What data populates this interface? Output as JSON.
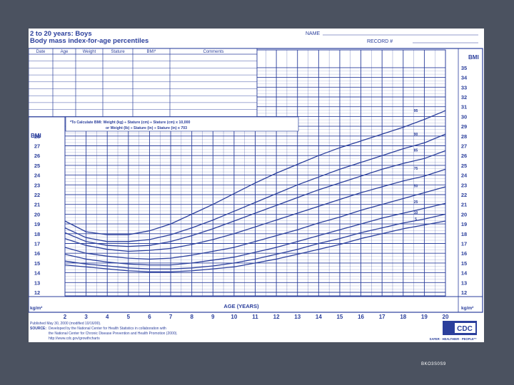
{
  "header": {
    "title_line1": "2 to 20 years: Boys",
    "title_line2": "Body mass index-for-age percentiles",
    "name_label": "NAME",
    "record_label": "RECORD #"
  },
  "table": {
    "columns": [
      "Date",
      "Age",
      "Weight",
      "Stature",
      "BMI*",
      "Comments"
    ]
  },
  "formula": {
    "line1": "*To Calculate BMI: Weight (kg) ÷ Stature (cm) ÷ Stature (cm) x 10,000",
    "line2": "or Weight (lb) ÷ Stature (in) ÷ Stature (in) x 703"
  },
  "axes": {
    "bmi_label_left": "BMI",
    "bmi_label_right": "BMI",
    "unit_left": "kg/m²",
    "unit_right": "kg/m²",
    "age_label": "AGE (YEARS)"
  },
  "footer": {
    "published_line": "Published May 30, 2000 (modified 10/16/00).",
    "source_label": "SOURCE:",
    "source_line1": "Developed by the National Center for Health Statistics in collaboration with",
    "source_line2": "the National Center for Chronic Disease Prevention and Health Promotion (2000).",
    "source_line3": "http://www.cdc.gov/growthcharts",
    "logo_text": "CDC",
    "safer_text": "SAFER · HEALTHIER · PEOPLE™"
  },
  "slide": {
    "code": "BKO3S0S9"
  },
  "colors": {
    "ink": "#2b3f9c",
    "paper": "#ffffff",
    "slide_bg": "#4b5260"
  },
  "chart_data": {
    "type": "line",
    "title": "Body mass index-for-age percentiles",
    "xlabel": "AGE (YEARS)",
    "ylabel": "BMI",
    "xlim": [
      2,
      20
    ],
    "ylim": [
      12,
      35
    ],
    "x_ticks": [
      2,
      3,
      4,
      5,
      6,
      7,
      8,
      9,
      10,
      11,
      12,
      13,
      14,
      15,
      16,
      17,
      18,
      19,
      20
    ],
    "y_ticks_left": [
      12,
      13,
      14,
      15,
      16,
      17,
      18,
      19,
      20,
      21,
      22,
      23,
      24,
      25,
      26,
      27,
      28
    ],
    "y_ticks_right": [
      12,
      13,
      14,
      15,
      16,
      17,
      18,
      19,
      20,
      21,
      22,
      23,
      24,
      25,
      26,
      27,
      28,
      29,
      30,
      31,
      32,
      33,
      34,
      35
    ],
    "x": [
      2,
      3,
      4,
      5,
      6,
      7,
      8,
      9,
      10,
      11,
      12,
      13,
      14,
      15,
      16,
      17,
      18,
      19,
      20
    ],
    "series": [
      {
        "name": "95",
        "values": [
          19.3,
          18.2,
          17.9,
          17.9,
          18.3,
          19.0,
          20.0,
          21.0,
          22.1,
          23.2,
          24.2,
          25.1,
          26.0,
          26.8,
          27.5,
          28.2,
          28.9,
          29.7,
          30.6
        ]
      },
      {
        "name": "90",
        "values": [
          18.6,
          17.6,
          17.2,
          17.2,
          17.4,
          17.9,
          18.6,
          19.4,
          20.3,
          21.2,
          22.1,
          23.0,
          23.8,
          24.6,
          25.3,
          26.0,
          26.7,
          27.3,
          28.2
        ]
      },
      {
        "name": "85",
        "values": [
          18.1,
          17.2,
          16.8,
          16.7,
          16.8,
          17.2,
          17.8,
          18.5,
          19.3,
          20.1,
          20.9,
          21.7,
          22.5,
          23.2,
          23.9,
          24.6,
          25.2,
          25.7,
          26.5
        ]
      },
      {
        "name": "75",
        "values": [
          17.5,
          16.8,
          16.4,
          16.2,
          16.3,
          16.5,
          16.9,
          17.4,
          18.0,
          18.7,
          19.4,
          20.1,
          20.8,
          21.5,
          22.2,
          22.8,
          23.4,
          23.9,
          24.6
        ]
      },
      {
        "name": "50",
        "values": [
          16.6,
          16.0,
          15.7,
          15.5,
          15.4,
          15.5,
          15.8,
          16.2,
          16.6,
          17.2,
          17.8,
          18.4,
          19.1,
          19.7,
          20.4,
          21.0,
          21.6,
          22.2,
          22.8
        ]
      },
      {
        "name": "25",
        "values": [
          15.9,
          15.4,
          15.1,
          14.9,
          14.8,
          14.8,
          15.0,
          15.3,
          15.6,
          16.1,
          16.6,
          17.2,
          17.8,
          18.4,
          19.0,
          19.6,
          20.1,
          20.6,
          21.1
        ]
      },
      {
        "name": "10",
        "values": [
          15.2,
          14.9,
          14.7,
          14.5,
          14.4,
          14.4,
          14.5,
          14.7,
          15.0,
          15.4,
          15.9,
          16.4,
          17.0,
          17.5,
          18.1,
          18.6,
          19.1,
          19.5,
          20.0
        ]
      },
      {
        "name": "5",
        "values": [
          14.8,
          14.6,
          14.4,
          14.2,
          14.1,
          14.1,
          14.2,
          14.4,
          14.6,
          15.0,
          15.4,
          15.9,
          16.4,
          16.9,
          17.5,
          18.0,
          18.5,
          18.9,
          19.3
        ]
      }
    ],
    "grid": true,
    "legend": "line-labels-right"
  }
}
